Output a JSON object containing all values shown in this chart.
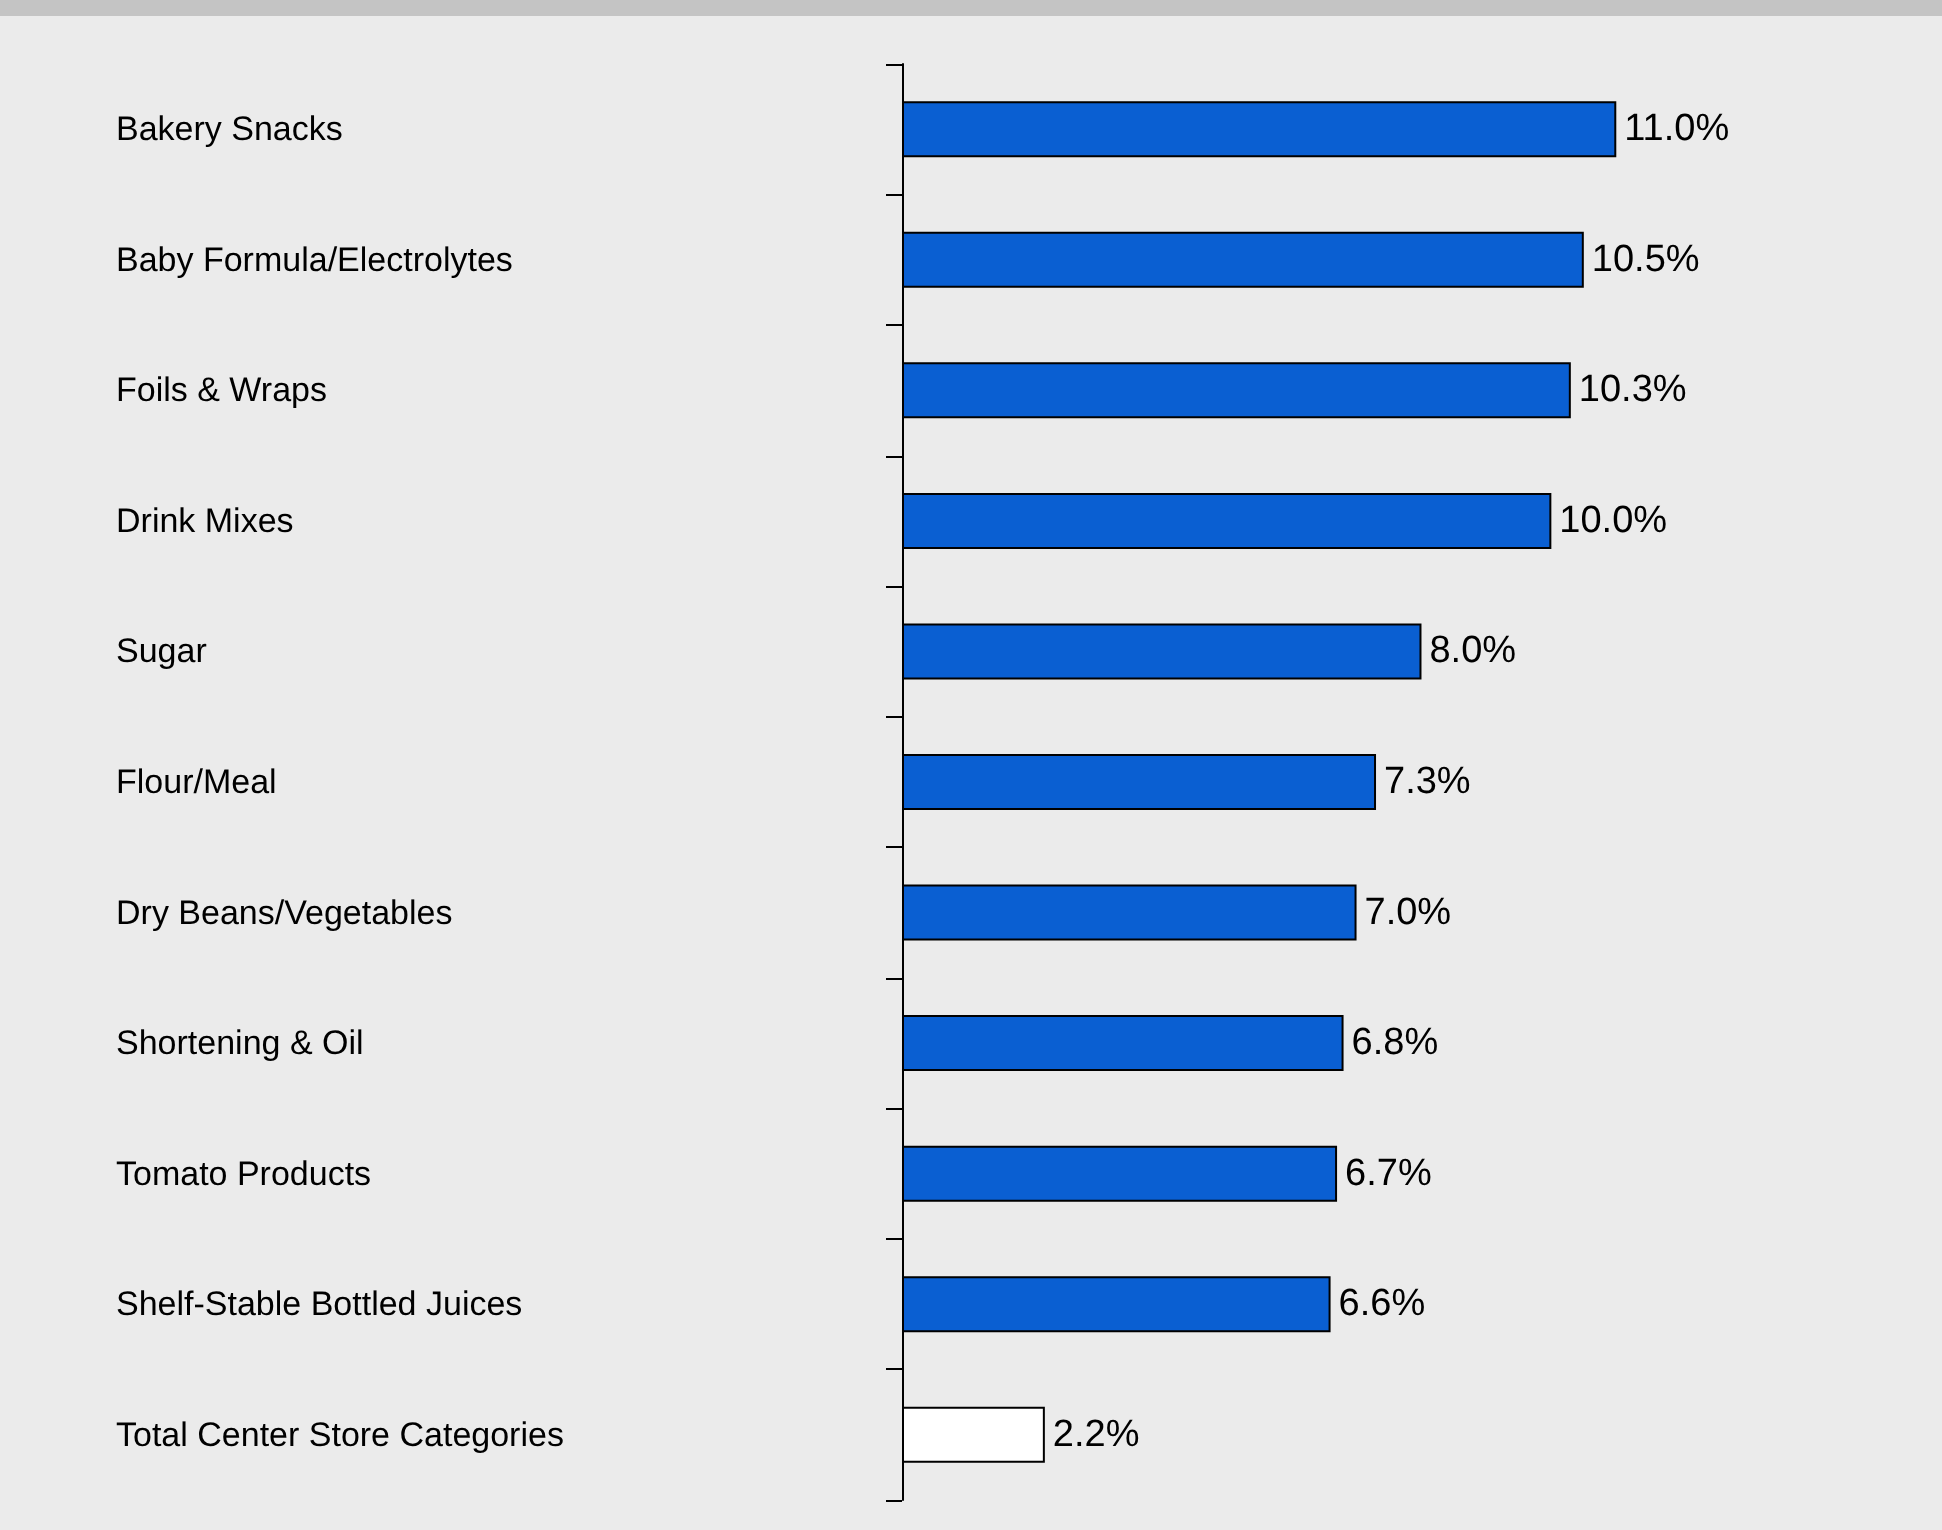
{
  "chart_data": {
    "type": "bar",
    "orientation": "horizontal",
    "categories": [
      "Bakery Snacks",
      "Baby Formula/Electrolytes",
      "Foils & Wraps",
      "Drink Mixes",
      "Sugar",
      "Flour/Meal",
      "Dry Beans/Vegetables",
      "Shortening & Oil",
      "Tomato Products",
      "Shelf-Stable Bottled Juices",
      "Total Center Store Categories"
    ],
    "values": [
      11.0,
      10.5,
      10.3,
      10.0,
      8.0,
      7.3,
      7.0,
      6.8,
      6.7,
      6.6,
      2.2
    ],
    "value_labels": [
      "11.0%",
      "10.5%",
      "10.3%",
      "10.0%",
      "8.0%",
      "7.3%",
      "7.0%",
      "6.8%",
      "6.7%",
      "6.6%",
      "2.2%"
    ],
    "colors": [
      "#0a5fd2",
      "#0a5fd2",
      "#0a5fd2",
      "#0a5fd2",
      "#0a5fd2",
      "#0a5fd2",
      "#0a5fd2",
      "#0a5fd2",
      "#0a5fd2",
      "#0a5fd2",
      "#ffffff"
    ]
  }
}
